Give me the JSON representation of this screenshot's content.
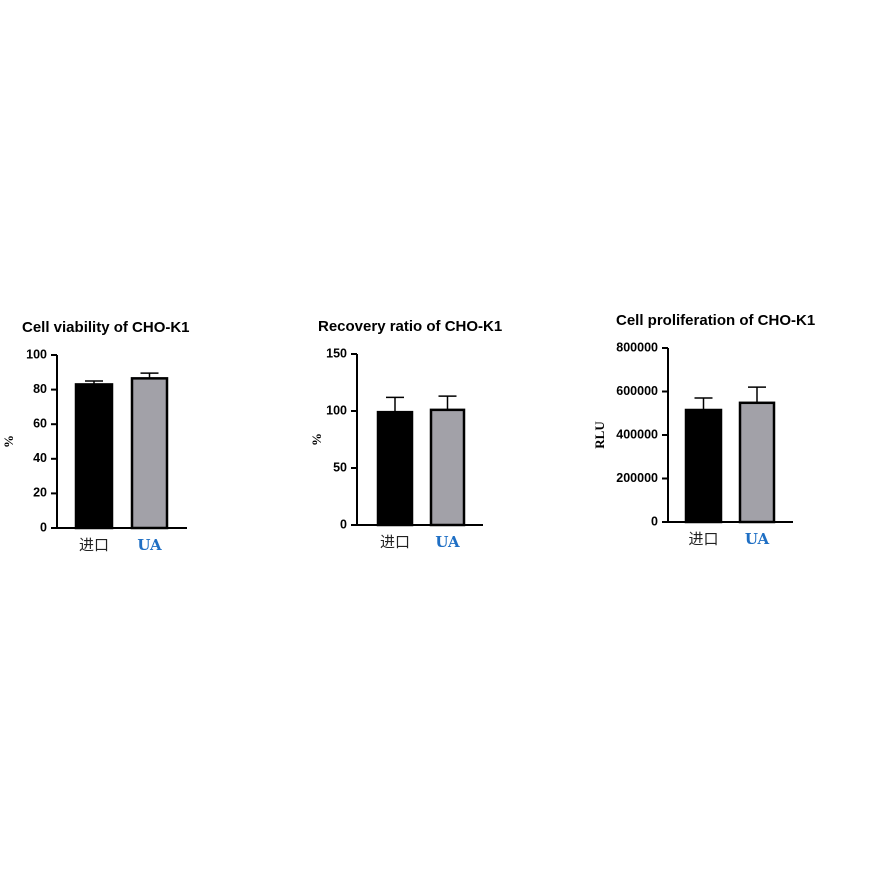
{
  "chart_data": [
    {
      "type": "bar",
      "title": "Cell viability of CHO-K1",
      "y_label": "%",
      "categories": [
        "进口",
        "UA"
      ],
      "category_colors": [
        "#222222",
        "#1f6fc4"
      ],
      "values": [
        83,
        86.5
      ],
      "errors": [
        2,
        3
      ],
      "colors": [
        "#000000",
        "#a2a1a8"
      ],
      "ylim": [
        0,
        100
      ],
      "yticks": [
        0,
        20,
        40,
        60,
        80,
        100
      ]
    },
    {
      "type": "bar",
      "title": "Recovery ratio of CHO-K1",
      "y_label": "%",
      "categories": [
        "进口",
        "UA"
      ],
      "category_colors": [
        "#222222",
        "#1f6fc4"
      ],
      "values": [
        99,
        101
      ],
      "errors": [
        13,
        12
      ],
      "colors": [
        "#000000",
        "#a2a1a8"
      ],
      "ylim": [
        0,
        150
      ],
      "yticks": [
        0,
        50,
        100,
        150
      ]
    },
    {
      "type": "bar",
      "title": "Cell proliferation of CHO-K1",
      "y_label": "RLU",
      "categories": [
        "进口",
        "UA"
      ],
      "category_colors": [
        "#222222",
        "#1f6fc4"
      ],
      "values": [
        515000,
        548000
      ],
      "errors": [
        55000,
        72000
      ],
      "colors": [
        "#000000",
        "#a2a1a8"
      ],
      "ylim": [
        0,
        800000
      ],
      "yticks": [
        0,
        200000,
        400000,
        600000,
        800000
      ]
    }
  ]
}
